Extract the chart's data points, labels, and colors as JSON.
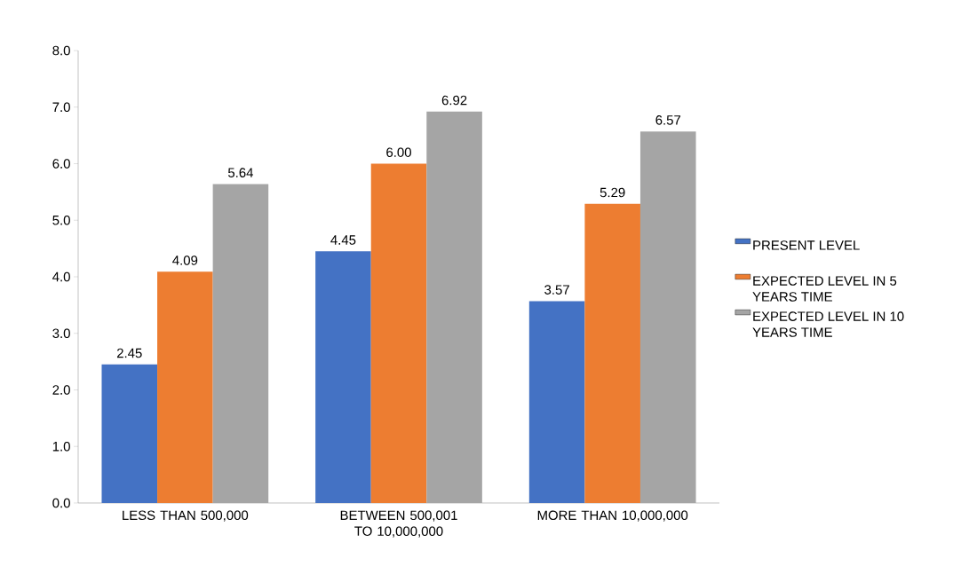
{
  "chart_data": {
    "type": "bar",
    "categories": [
      "LESS THAN 500,000",
      "BETWEEN 500,001 TO 10,000,000",
      "MORE THAN 10,000,000"
    ],
    "series": [
      {
        "name": "PRESENT LEVEL",
        "color": "#4472c4",
        "values": [
          2.45,
          4.45,
          3.57
        ],
        "value_labels": [
          "2.45",
          "4.45",
          "3.57"
        ]
      },
      {
        "name": "EXPECTED LEVEL IN 5 YEARS TIME",
        "color": "#ed7d31",
        "values": [
          4.09,
          6.0,
          5.29
        ],
        "value_labels": [
          "4.09",
          "6.00",
          "5.29"
        ]
      },
      {
        "name": "EXPECTED LEVEL IN 10 YEARS TIME",
        "color": "#a5a5a5",
        "values": [
          5.64,
          6.92,
          6.57
        ],
        "value_labels": [
          "5.64",
          "6.92",
          "6.57"
        ]
      }
    ],
    "ylim": [
      0,
      8
    ],
    "yticks": [
      {
        "value": 0,
        "label": "0.0"
      },
      {
        "value": 1,
        "label": "1.0"
      },
      {
        "value": 2,
        "label": "2.0"
      },
      {
        "value": 3,
        "label": "3.0"
      },
      {
        "value": 4,
        "label": "4.0"
      },
      {
        "value": 5,
        "label": "5.0"
      },
      {
        "value": 6,
        "label": "6.0"
      },
      {
        "value": 7,
        "label": "7.0"
      },
      {
        "value": 8,
        "label": "8.0"
      }
    ],
    "legend": "right",
    "grid": false
  }
}
